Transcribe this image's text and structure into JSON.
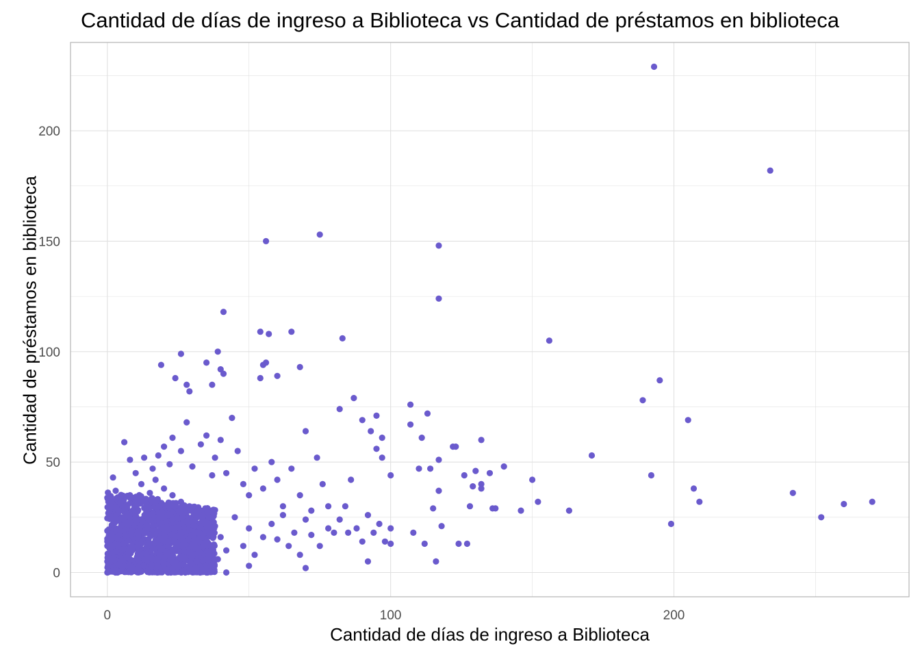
{
  "chart_data": {
    "type": "scatter",
    "title": "Cantidad de días de ingreso a Biblioteca vs Cantidad de préstamos en biblioteca",
    "xlabel": "Cantidad de días de ingreso a Biblioteca",
    "ylabel": "Cantidad de préstamos en biblioteca",
    "xlim": [
      -13,
      283
    ],
    "ylim": [
      -11,
      240
    ],
    "xticks": [
      0,
      100,
      200
    ],
    "yticks": [
      0,
      50,
      100,
      150,
      200
    ],
    "grid": true,
    "legend": "none",
    "colors": {
      "point": "#6A5ACD",
      "grid": "#dedede",
      "panel_border": "#b3b3b3"
    },
    "note_dense_cluster": "thousands of overlapping points with x 0-40 and y 0-35; a representative subset is listed",
    "points": [
      [
        0,
        0
      ],
      [
        0,
        5
      ],
      [
        0,
        12
      ],
      [
        1,
        3
      ],
      [
        1,
        17
      ],
      [
        2,
        8
      ],
      [
        2,
        22
      ],
      [
        3,
        14
      ],
      [
        3,
        28
      ],
      [
        4,
        4
      ],
      [
        4,
        19
      ],
      [
        5,
        10
      ],
      [
        5,
        25
      ],
      [
        6,
        2
      ],
      [
        6,
        16
      ],
      [
        7,
        30
      ],
      [
        7,
        7
      ],
      [
        8,
        21
      ],
      [
        8,
        35
      ],
      [
        9,
        12
      ],
      [
        9,
        27
      ],
      [
        10,
        5
      ],
      [
        10,
        18
      ],
      [
        11,
        33
      ],
      [
        11,
        9
      ],
      [
        12,
        24
      ],
      [
        12,
        40
      ],
      [
        13,
        15
      ],
      [
        13,
        3
      ],
      [
        14,
        29
      ],
      [
        14,
        20
      ],
      [
        15,
        8
      ],
      [
        15,
        36
      ],
      [
        16,
        13
      ],
      [
        16,
        26
      ],
      [
        17,
        42
      ],
      [
        17,
        6
      ],
      [
        18,
        18
      ],
      [
        18,
        31
      ],
      [
        19,
        11
      ],
      [
        19,
        24
      ],
      [
        20,
        38
      ],
      [
        20,
        2
      ],
      [
        21,
        16
      ],
      [
        21,
        29
      ],
      [
        22,
        9
      ],
      [
        22,
        22
      ],
      [
        23,
        35
      ],
      [
        24,
        14
      ],
      [
        24,
        27
      ],
      [
        25,
        4
      ],
      [
        25,
        19
      ],
      [
        26,
        32
      ],
      [
        27,
        12
      ],
      [
        27,
        24
      ],
      [
        28,
        7
      ],
      [
        28,
        17
      ],
      [
        29,
        30
      ],
      [
        30,
        20
      ],
      [
        30,
        10
      ],
      [
        31,
        26
      ],
      [
        32,
        15
      ],
      [
        33,
        22
      ],
      [
        34,
        8
      ],
      [
        35,
        18
      ],
      [
        36,
        28
      ],
      [
        37,
        12
      ],
      [
        38,
        21
      ],
      [
        39,
        6
      ],
      [
        40,
        16
      ],
      [
        2,
        43
      ],
      [
        5,
        35
      ],
      [
        6,
        59
      ],
      [
        8,
        51
      ],
      [
        10,
        45
      ],
      [
        13,
        52
      ],
      [
        16,
        47
      ],
      [
        18,
        53
      ],
      [
        20,
        57
      ],
      [
        22,
        49
      ],
      [
        23,
        61
      ],
      [
        26,
        55
      ],
      [
        28,
        68
      ],
      [
        30,
        48
      ],
      [
        33,
        58
      ],
      [
        35,
        62
      ],
      [
        37,
        44
      ],
      [
        38,
        52
      ],
      [
        40,
        60
      ],
      [
        42,
        45
      ],
      [
        44,
        70
      ],
      [
        46,
        55
      ],
      [
        48,
        40
      ],
      [
        50,
        35
      ],
      [
        52,
        47
      ],
      [
        55,
        38
      ],
      [
        58,
        50
      ],
      [
        60,
        42
      ],
      [
        62,
        30
      ],
      [
        65,
        47
      ],
      [
        68,
        35
      ],
      [
        70,
        64
      ],
      [
        72,
        28
      ],
      [
        74,
        52
      ],
      [
        76,
        40
      ],
      [
        78,
        30
      ],
      [
        80,
        18
      ],
      [
        82,
        24
      ],
      [
        84,
        30
      ],
      [
        86,
        42
      ],
      [
        88,
        20
      ],
      [
        90,
        14
      ],
      [
        92,
        26
      ],
      [
        94,
        18
      ],
      [
        96,
        22
      ],
      [
        98,
        14
      ],
      [
        100,
        20
      ],
      [
        42,
        10
      ],
      [
        45,
        25
      ],
      [
        48,
        12
      ],
      [
        50,
        20
      ],
      [
        52,
        8
      ],
      [
        55,
        16
      ],
      [
        58,
        22
      ],
      [
        60,
        15
      ],
      [
        62,
        26
      ],
      [
        64,
        12
      ],
      [
        66,
        18
      ],
      [
        68,
        8
      ],
      [
        70,
        24
      ],
      [
        72,
        17
      ],
      [
        75,
        12
      ],
      [
        78,
        20
      ],
      [
        85,
        18
      ],
      [
        92,
        5
      ],
      [
        100,
        13
      ],
      [
        70,
        2
      ],
      [
        50,
        3
      ],
      [
        42,
        0
      ],
      [
        19,
        94
      ],
      [
        24,
        88
      ],
      [
        26,
        99
      ],
      [
        28,
        85
      ],
      [
        29,
        82
      ],
      [
        35,
        95
      ],
      [
        37,
        85
      ],
      [
        39,
        100
      ],
      [
        40,
        92
      ],
      [
        41,
        90
      ],
      [
        41,
        118
      ],
      [
        54,
        109
      ],
      [
        54,
        88
      ],
      [
        55,
        94
      ],
      [
        56,
        95
      ],
      [
        57,
        108
      ],
      [
        60,
        89
      ],
      [
        65,
        109
      ],
      [
        68,
        93
      ],
      [
        56,
        150
      ],
      [
        75,
        153
      ],
      [
        83,
        106
      ],
      [
        87,
        79
      ],
      [
        82,
        74
      ],
      [
        90,
        69
      ],
      [
        95,
        71
      ],
      [
        93,
        64
      ],
      [
        97,
        61
      ],
      [
        95,
        56
      ],
      [
        97,
        52
      ],
      [
        100,
        44
      ],
      [
        107,
        76
      ],
      [
        107,
        67
      ],
      [
        111,
        61
      ],
      [
        113,
        72
      ],
      [
        117,
        51
      ],
      [
        117,
        37
      ],
      [
        118,
        21
      ],
      [
        110,
        47
      ],
      [
        114,
        47
      ],
      [
        115,
        29
      ],
      [
        116,
        5
      ],
      [
        117,
        148
      ],
      [
        117,
        124
      ],
      [
        122,
        57
      ],
      [
        123,
        57
      ],
      [
        126,
        44
      ],
      [
        128,
        30
      ],
      [
        129,
        39
      ],
      [
        130,
        46
      ],
      [
        132,
        60
      ],
      [
        132,
        40
      ],
      [
        132,
        38
      ],
      [
        135,
        45
      ],
      [
        136,
        29
      ],
      [
        137,
        29
      ],
      [
        140,
        48
      ],
      [
        146,
        28
      ],
      [
        150,
        42
      ],
      [
        152,
        32
      ],
      [
        156,
        105
      ],
      [
        163,
        28
      ],
      [
        171,
        53
      ],
      [
        189,
        78
      ],
      [
        192,
        44
      ],
      [
        193,
        229
      ],
      [
        195,
        87
      ],
      [
        199,
        22
      ],
      [
        205,
        69
      ],
      [
        207,
        38
      ],
      [
        209,
        32
      ],
      [
        234,
        182
      ],
      [
        242,
        36
      ],
      [
        252,
        25
      ],
      [
        260,
        31
      ],
      [
        270,
        32
      ],
      [
        124,
        13
      ],
      [
        127,
        13
      ],
      [
        112,
        13
      ],
      [
        108,
        18
      ]
    ]
  }
}
